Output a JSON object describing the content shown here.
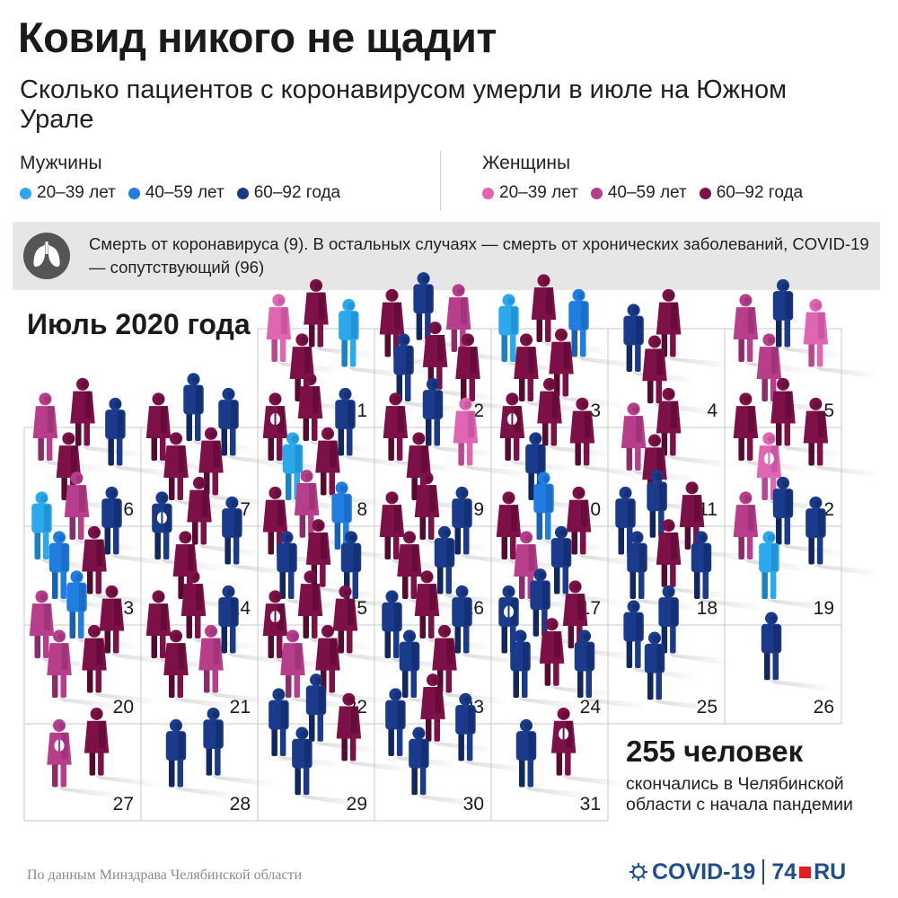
{
  "title": "Ковид никого не щадит",
  "subtitle": "Сколько пациентов с коронавирусом умерли в июле на Южном Урале",
  "legend": {
    "men": {
      "label": "Мужчины",
      "items": [
        {
          "label": "20–39 лет",
          "color": "#2ba8ee"
        },
        {
          "label": "40–59 лет",
          "color": "#1f7ee0"
        },
        {
          "label": "60–92 года",
          "color": "#1a3a8c"
        }
      ]
    },
    "women": {
      "label": "Женщины",
      "items": [
        {
          "label": "20–39 лет",
          "color": "#e066b4"
        },
        {
          "label": "40–59 лет",
          "color": "#b83e8c"
        },
        {
          "label": "60–92 года",
          "color": "#7d1047"
        }
      ]
    }
  },
  "note": {
    "icon": "lungs-icon",
    "text": "Смерть от коронавируса (9). В остальных случаях — смерть от хронических заболеваний, COVID-19 — сопутствующий (96)"
  },
  "month_label": "Июль 2020 года",
  "total": {
    "number": "255 человек",
    "description": "скончались в Челябинской области с начала пандемии"
  },
  "source": "По данным Минздрава Челябинской области",
  "brand": {
    "covid": "COVID-19",
    "site_num": "74",
    "site_suffix": "RU"
  },
  "chart_data": {
    "type": "table",
    "days": [
      {
        "day": 1,
        "deaths": 4,
        "people": [
          "w1",
          "w3",
          "m1",
          "w3"
        ]
      },
      {
        "day": 2,
        "deaths": 6,
        "people": [
          "w3",
          "m3",
          "w2",
          "m3",
          "w3",
          "w3"
        ]
      },
      {
        "day": 3,
        "deaths": 5,
        "people": [
          "m1",
          "w3",
          "m2",
          "w3",
          "w3"
        ]
      },
      {
        "day": 4,
        "deaths": 3,
        "people": [
          "m3",
          "w3",
          "w3"
        ]
      },
      {
        "day": 5,
        "deaths": 4,
        "people": [
          "w2",
          "m3",
          "w1",
          "w2"
        ]
      },
      {
        "day": 6,
        "deaths": 4,
        "people": [
          "w2",
          "w3",
          "m3",
          "w3"
        ]
      },
      {
        "day": 7,
        "deaths": 5,
        "people": [
          "w3",
          "m3",
          "m3",
          "w3",
          "w3"
        ]
      },
      {
        "day": 8,
        "deaths": 5,
        "people": [
          "w3",
          "w3",
          "m3",
          "m1",
          "w3"
        ]
      },
      {
        "day": 9,
        "deaths": 4,
        "people": [
          "w3",
          "m3",
          "w1",
          "w3"
        ]
      },
      {
        "day": 10,
        "deaths": 4,
        "people": [
          "w3",
          "w3",
          "w3",
          "m3"
        ]
      },
      {
        "day": 11,
        "deaths": 3,
        "people": [
          "w2",
          "w3",
          "w3"
        ]
      },
      {
        "day": 12,
        "deaths": 4,
        "people": [
          "w3",
          "w3",
          "w3",
          "w1"
        ]
      },
      {
        "day": 13,
        "deaths": 5,
        "people": [
          "m1",
          "w2",
          "m3",
          "m2",
          "w3"
        ]
      },
      {
        "day": 14,
        "deaths": 4,
        "people": [
          "m3",
          "w3",
          "m3",
          "w3"
        ]
      },
      {
        "day": 15,
        "deaths": 6,
        "people": [
          "w3",
          "w2",
          "m2",
          "m3",
          "w3",
          "m3"
        ]
      },
      {
        "day": 16,
        "deaths": 5,
        "people": [
          "w3",
          "w3",
          "m3",
          "w3",
          "m3"
        ]
      },
      {
        "day": 17,
        "deaths": 5,
        "people": [
          "w3",
          "m2",
          "w3",
          "w2",
          "m3"
        ]
      },
      {
        "day": 18,
        "deaths": 6,
        "people": [
          "m3",
          "m3",
          "w3",
          "m3",
          "w3",
          "m3"
        ]
      },
      {
        "day": 19,
        "deaths": 4,
        "people": [
          "w2",
          "m3",
          "m3",
          "m1"
        ]
      },
      {
        "day": 20,
        "deaths": 5,
        "people": [
          "w2",
          "m2",
          "w3",
          "w2",
          "w3"
        ]
      },
      {
        "day": 21,
        "deaths": 5,
        "people": [
          "w3",
          "w3",
          "m3",
          "w3",
          "w2"
        ]
      },
      {
        "day": 22,
        "deaths": 5,
        "people": [
          "w3",
          "w3",
          "w3",
          "w2",
          "w3"
        ]
      },
      {
        "day": 23,
        "deaths": 5,
        "people": [
          "m3",
          "w3",
          "m3",
          "m3",
          "w3"
        ]
      },
      {
        "day": 24,
        "deaths": 6,
        "people": [
          "m3",
          "m3",
          "w3",
          "m3",
          "w3",
          "m3"
        ]
      },
      {
        "day": 25,
        "deaths": 3,
        "people": [
          "m3",
          "m3",
          "m3"
        ]
      },
      {
        "day": 26,
        "deaths": 1,
        "people": [
          "m3"
        ]
      },
      {
        "day": 27,
        "deaths": 2,
        "people": [
          "w2",
          "w3"
        ]
      },
      {
        "day": 28,
        "deaths": 2,
        "people": [
          "m3",
          "m3"
        ]
      },
      {
        "day": 29,
        "deaths": 4,
        "people": [
          "m3",
          "m3",
          "w3",
          "m3"
        ]
      },
      {
        "day": 30,
        "deaths": 4,
        "people": [
          "m3",
          "w3",
          "m3",
          "m3"
        ]
      },
      {
        "day": 31,
        "deaths": 2,
        "people": [
          "m3",
          "w3"
        ]
      }
    ]
  }
}
